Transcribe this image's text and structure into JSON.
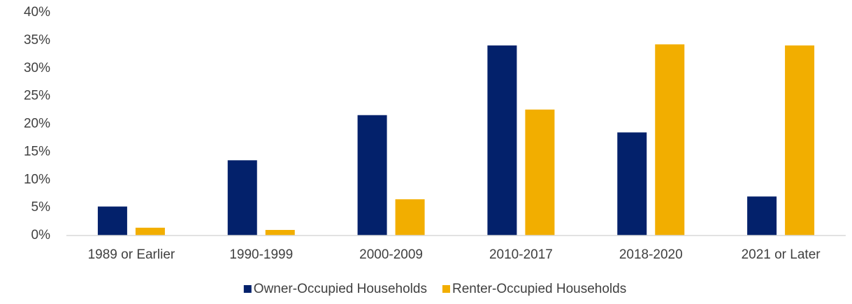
{
  "chart_data": {
    "type": "bar",
    "categories": [
      "1989 or Earlier",
      "1990-1999",
      "2000-2009",
      "2010-2017",
      "2018-2020",
      "2021 or Later"
    ],
    "series": [
      {
        "name": "Owner-Occupied Households",
        "color": "#03216b",
        "values": [
          5.2,
          13.5,
          21.6,
          34.1,
          18.5,
          7.0
        ]
      },
      {
        "name": "Renter-Occupied Households",
        "color": "#f2ae00",
        "values": [
          1.4,
          1.0,
          6.5,
          22.6,
          34.3,
          34.1
        ]
      }
    ],
    "ylim": [
      0,
      40
    ],
    "yticks": [
      {
        "value": 0,
        "label": "0%"
      },
      {
        "value": 5,
        "label": "5%"
      },
      {
        "value": 10,
        "label": "10%"
      },
      {
        "value": 15,
        "label": "15%"
      },
      {
        "value": 20,
        "label": "20%"
      },
      {
        "value": 25,
        "label": "25%"
      },
      {
        "value": 30,
        "label": "30%"
      },
      {
        "value": 35,
        "label": "35%"
      },
      {
        "value": 40,
        "label": "40%"
      }
    ],
    "grid": false,
    "legend": "bottom"
  }
}
